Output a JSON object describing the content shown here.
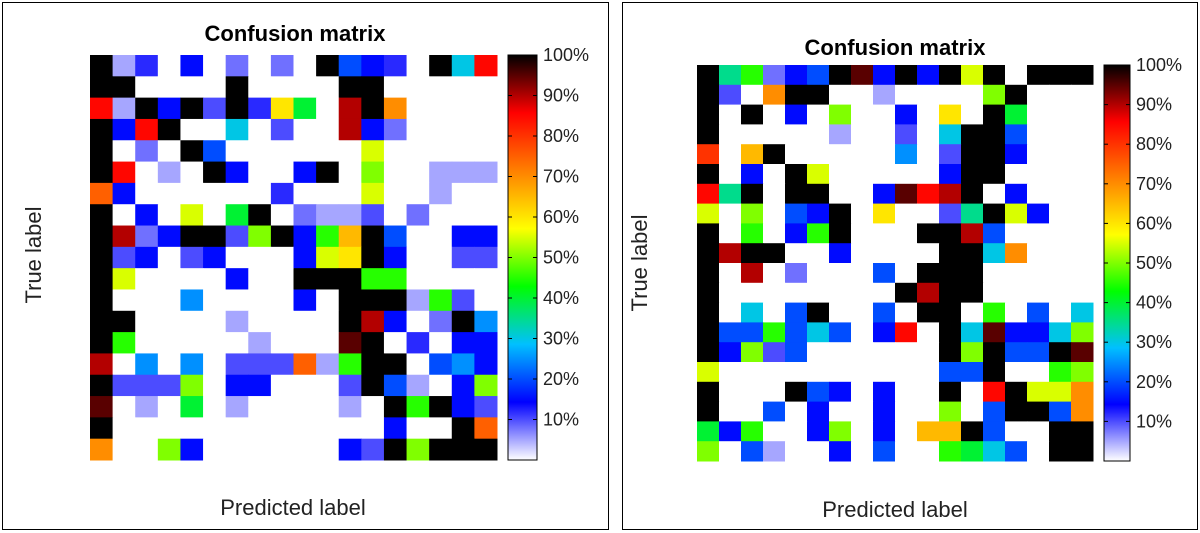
{
  "chart_data": [
    {
      "type": "heatmap",
      "title": "Confusion matrix",
      "xlabel": "Predicted label",
      "ylabel": "True label",
      "colorbar": {
        "ticks": [
          "10%",
          "20%",
          "30%",
          "40%",
          "50%",
          "60%",
          "70%",
          "80%",
          "90%",
          "100%"
        ],
        "range": [
          0,
          100
        ],
        "colormap": [
          "#ffffff",
          "#0000ff",
          "#00c0ff",
          "#00ff00",
          "#ffff00",
          "#ff8000",
          "#ff0000",
          "#000000"
        ]
      },
      "grid": false,
      "matrix": [
        [
          100,
          5,
          12,
          0,
          15,
          0,
          8,
          0,
          8,
          0,
          100,
          20,
          15,
          12,
          0,
          100,
          30,
          85
        ],
        [
          100,
          100,
          0,
          0,
          0,
          0,
          100,
          0,
          0,
          0,
          0,
          100,
          100,
          0,
          0,
          0,
          0,
          0
        ],
        [
          85,
          5,
          100,
          15,
          100,
          10,
          100,
          12,
          60,
          40,
          0,
          90,
          100,
          70,
          0,
          0,
          0,
          0
        ],
        [
          100,
          15,
          85,
          100,
          0,
          0,
          30,
          0,
          10,
          0,
          0,
          90,
          15,
          8,
          0,
          0,
          0,
          0
        ],
        [
          100,
          0,
          8,
          0,
          100,
          20,
          0,
          0,
          0,
          0,
          0,
          0,
          55,
          0,
          0,
          0,
          0,
          0
        ],
        [
          100,
          85,
          0,
          5,
          0,
          100,
          15,
          0,
          0,
          15,
          100,
          0,
          50,
          0,
          0,
          5,
          5,
          5
        ],
        [
          75,
          15,
          0,
          0,
          0,
          0,
          0,
          0,
          12,
          0,
          0,
          0,
          55,
          0,
          0,
          5,
          0,
          0
        ],
        [
          100,
          0,
          15,
          0,
          55,
          0,
          40,
          100,
          0,
          8,
          5,
          5,
          10,
          0,
          8,
          0,
          0,
          0
        ],
        [
          100,
          90,
          8,
          15,
          100,
          100,
          10,
          50,
          100,
          15,
          45,
          65,
          100,
          20,
          0,
          0,
          15,
          15
        ],
        [
          100,
          10,
          15,
          0,
          10,
          15,
          0,
          0,
          0,
          15,
          55,
          60,
          100,
          15,
          0,
          0,
          10,
          10
        ],
        [
          100,
          55,
          0,
          0,
          0,
          0,
          15,
          0,
          0,
          100,
          100,
          100,
          45,
          45,
          0,
          0,
          0,
          0
        ],
        [
          100,
          0,
          0,
          0,
          25,
          0,
          0,
          0,
          0,
          15,
          0,
          100,
          100,
          100,
          5,
          45,
          10,
          0
        ],
        [
          100,
          100,
          0,
          0,
          0,
          0,
          5,
          0,
          0,
          0,
          0,
          100,
          90,
          15,
          0,
          8,
          100,
          25
        ],
        [
          100,
          45,
          0,
          0,
          0,
          0,
          0,
          5,
          0,
          0,
          0,
          95,
          100,
          0,
          12,
          0,
          15,
          15
        ],
        [
          90,
          0,
          25,
          0,
          25,
          0,
          10,
          10,
          10,
          75,
          5,
          45,
          100,
          100,
          0,
          20,
          25,
          15
        ],
        [
          100,
          10,
          10,
          10,
          50,
          0,
          15,
          15,
          0,
          0,
          0,
          10,
          100,
          20,
          5,
          0,
          15,
          50
        ],
        [
          95,
          0,
          5,
          0,
          40,
          0,
          5,
          0,
          0,
          0,
          0,
          5,
          0,
          100,
          45,
          100,
          15,
          10
        ],
        [
          100,
          0,
          0,
          0,
          0,
          0,
          0,
          0,
          0,
          0,
          0,
          0,
          0,
          15,
          0,
          0,
          100,
          75
        ],
        [
          70,
          0,
          0,
          50,
          15,
          0,
          0,
          0,
          0,
          0,
          0,
          15,
          10,
          100,
          50,
          100,
          100,
          100
        ]
      ]
    },
    {
      "type": "heatmap",
      "title": "Confusion matrix",
      "xlabel": "Predicted label",
      "ylabel": "True label",
      "colorbar": {
        "ticks": [
          "10%",
          "20%",
          "30%",
          "40%",
          "50%",
          "60%",
          "70%",
          "80%",
          "90%",
          "100%"
        ],
        "range": [
          0,
          100
        ],
        "colormap": [
          "#ffffff",
          "#0000ff",
          "#00c0ff",
          "#00ff00",
          "#ffff00",
          "#ff8000",
          "#ff0000",
          "#000000"
        ]
      },
      "grid": false,
      "matrix": [
        [
          100,
          35,
          45,
          8,
          15,
          20,
          100,
          95,
          15,
          100,
          15,
          100,
          55,
          100,
          0,
          100,
          100,
          100
        ],
        [
          100,
          10,
          0,
          70,
          100,
          100,
          0,
          0,
          5,
          0,
          0,
          0,
          0,
          50,
          100,
          0,
          0,
          0
        ],
        [
          100,
          0,
          100,
          0,
          15,
          0,
          50,
          0,
          0,
          15,
          0,
          60,
          0,
          100,
          40,
          0,
          0,
          0
        ],
        [
          100,
          0,
          0,
          0,
          0,
          0,
          5,
          0,
          0,
          10,
          0,
          30,
          100,
          100,
          20,
          0,
          0,
          0
        ],
        [
          80,
          0,
          65,
          100,
          0,
          0,
          0,
          0,
          0,
          25,
          0,
          10,
          100,
          100,
          15,
          0,
          0,
          0
        ],
        [
          100,
          0,
          15,
          0,
          100,
          55,
          0,
          0,
          0,
          0,
          0,
          15,
          100,
          100,
          0,
          0,
          0,
          0
        ],
        [
          85,
          35,
          100,
          0,
          100,
          100,
          0,
          0,
          15,
          95,
          85,
          90,
          100,
          0,
          15,
          0,
          0,
          0
        ],
        [
          55,
          0,
          50,
          0,
          20,
          15,
          100,
          0,
          60,
          0,
          0,
          10,
          35,
          100,
          55,
          15,
          0,
          0
        ],
        [
          100,
          0,
          45,
          0,
          15,
          45,
          100,
          0,
          0,
          0,
          100,
          100,
          90,
          20,
          0,
          0,
          0,
          0
        ],
        [
          100,
          90,
          100,
          100,
          0,
          0,
          15,
          0,
          0,
          0,
          0,
          100,
          100,
          30,
          70,
          0,
          0,
          0
        ],
        [
          100,
          0,
          90,
          0,
          8,
          0,
          0,
          0,
          20,
          0,
          100,
          100,
          100,
          0,
          0,
          0,
          0,
          0
        ],
        [
          100,
          0,
          0,
          0,
          0,
          0,
          0,
          0,
          0,
          100,
          90,
          100,
          100,
          0,
          0,
          0,
          0,
          0
        ],
        [
          100,
          0,
          30,
          0,
          20,
          100,
          0,
          0,
          20,
          0,
          100,
          100,
          0,
          45,
          0,
          20,
          0,
          30
        ],
        [
          100,
          20,
          20,
          45,
          20,
          30,
          20,
          0,
          15,
          85,
          0,
          100,
          30,
          95,
          15,
          15,
          30,
          50
        ],
        [
          100,
          15,
          50,
          10,
          20,
          0,
          0,
          0,
          0,
          0,
          0,
          100,
          50,
          100,
          20,
          20,
          100,
          95
        ],
        [
          55,
          0,
          0,
          0,
          0,
          0,
          0,
          0,
          0,
          0,
          0,
          20,
          20,
          100,
          0,
          0,
          45,
          50
        ],
        [
          100,
          0,
          0,
          0,
          100,
          20,
          15,
          0,
          15,
          0,
          0,
          100,
          0,
          85,
          100,
          55,
          55,
          70
        ],
        [
          100,
          0,
          0,
          20,
          0,
          15,
          0,
          0,
          15,
          0,
          0,
          50,
          0,
          20,
          100,
          100,
          20,
          70
        ],
        [
          40,
          15,
          45,
          0,
          0,
          15,
          50,
          0,
          15,
          0,
          65,
          65,
          100,
          20,
          0,
          0,
          100,
          100
        ],
        [
          50,
          0,
          20,
          5,
          0,
          0,
          15,
          0,
          20,
          0,
          0,
          45,
          40,
          30,
          20,
          0,
          100,
          100
        ]
      ]
    }
  ]
}
